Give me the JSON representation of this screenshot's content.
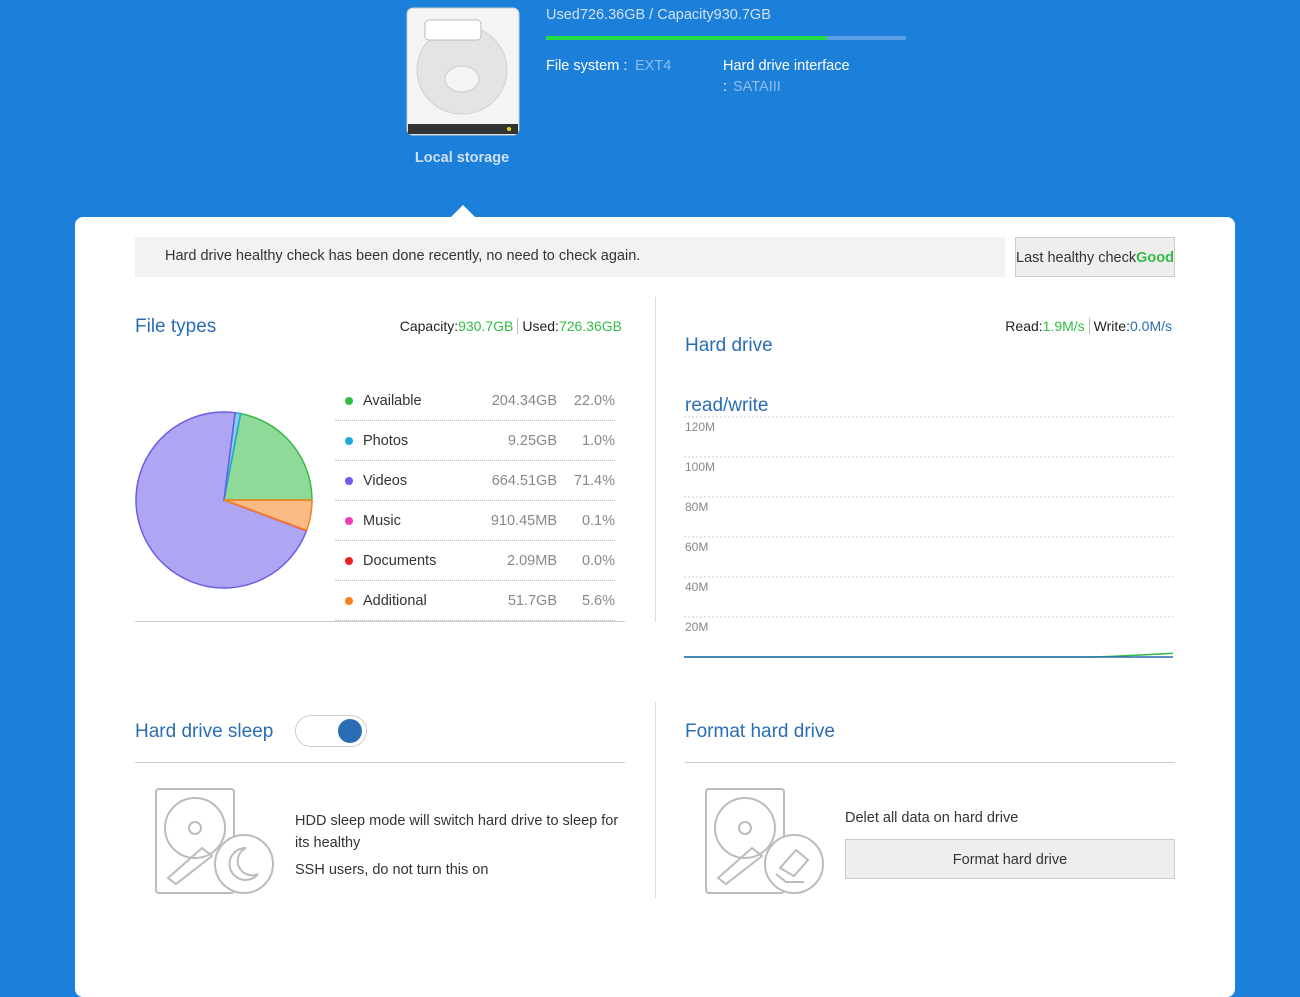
{
  "header": {
    "usage_text": "Used726.36GB / Capacity930.7GB",
    "usage_percent": 78,
    "file_system_label": "File system :",
    "file_system": "EXT4",
    "interface_label": "Hard drive interface",
    "interface_colon": ":",
    "interface": "SATAIII",
    "storage_label": "Local storage"
  },
  "notice": {
    "text": "Hard drive healthy check has been done recently, no need to check again.",
    "last_check_label": "Last healthy check",
    "last_check_value": "Good"
  },
  "file_types": {
    "title": "File types",
    "capacity_label": "Capacity:",
    "capacity": "930.7GB",
    "used_label": "Used:",
    "used": "726.36GB",
    "sizes": [
      "204.34GB",
      "9.25GB",
      "664.51GB",
      "910.45MB",
      "2.09MB",
      "51.7GB"
    ]
  },
  "hard_drive": {
    "title": "Hard drive read/write",
    "read_label": "Read:",
    "read": "1.9M/s",
    "write_label": "Write:",
    "write": "0.0M/s"
  },
  "chart_data": [
    {
      "type": "pie",
      "categories": [
        "Available",
        "Photos",
        "Videos",
        "Music",
        "Documents",
        "Additional"
      ],
      "values": [
        22.0,
        1.0,
        71.4,
        0.1,
        0.0,
        5.6
      ],
      "value_labels": [
        "22.0%",
        "1.0%",
        "71.4%",
        "0.1%",
        "0.0%",
        "5.6%"
      ],
      "colors": [
        "#33bb44",
        "#1fa9d6",
        "#6c5ce7",
        "#ee3cb4",
        "#ee2222",
        "#f5821f"
      ]
    },
    {
      "type": "line",
      "categories": [
        null,
        null,
        null,
        null,
        null,
        null,
        null,
        null,
        null,
        null,
        null,
        null,
        null,
        null,
        null,
        null,
        null,
        null,
        null,
        null,
        null,
        null,
        null,
        null,
        null
      ],
      "series": [
        {
          "name": "Read",
          "color": "#33bb44",
          "values": [
            0,
            0,
            0,
            0,
            0,
            0,
            0,
            0,
            0,
            0,
            0,
            0,
            0,
            0,
            0,
            0,
            0,
            0,
            0,
            0,
            0,
            0.3,
            0.8,
            1.3,
            1.9
          ]
        },
        {
          "name": "Write",
          "color": "#2a6db5",
          "values": [
            0,
            0,
            0,
            0,
            0,
            0,
            0,
            0,
            0,
            0,
            0,
            0,
            0,
            0,
            0,
            0,
            0,
            0,
            0,
            0,
            0,
            0,
            0,
            0,
            0
          ]
        }
      ],
      "ylim": [
        0,
        120
      ],
      "yticks": [
        {
          "value": 20,
          "label": "20M"
        },
        {
          "value": 40,
          "label": "40M"
        },
        {
          "value": 60,
          "label": "60M"
        },
        {
          "value": 80,
          "label": "80M"
        },
        {
          "value": 100,
          "label": "100M"
        },
        {
          "value": 120,
          "label": "120M"
        }
      ],
      "grid": true
    }
  ],
  "sleep": {
    "title": "Hard drive sleep",
    "enabled": true,
    "line1": "HDD sleep mode will switch hard drive to sleep for its healthy",
    "line2": "SSH users, do not turn this on"
  },
  "format": {
    "title": "Format hard drive",
    "text": "Delet all data on hard drive",
    "button": "Format hard drive"
  }
}
